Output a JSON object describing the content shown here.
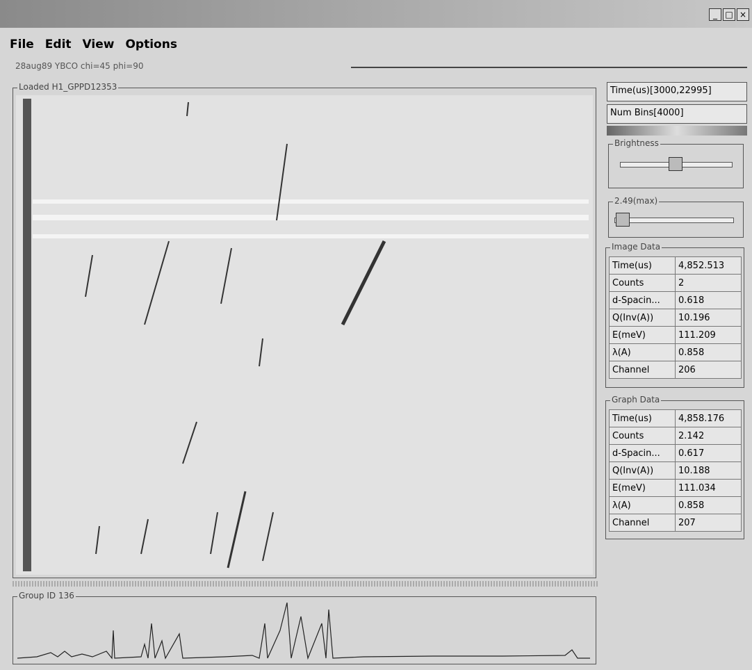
{
  "menu": [
    "File",
    "Edit",
    "View",
    "Options"
  ],
  "dataset_label": "28aug89 YBCO chi=45 phi=90",
  "image_panel": {
    "title": "Loaded H1_GPPD12353"
  },
  "controls": {
    "time_range": "Time(us)[3000,22995]",
    "num_bins": "Num Bins[4000]",
    "brightness_title": "Brightness",
    "max_title": "2.49(max)"
  },
  "image_data": {
    "title": "Image Data",
    "rows": [
      [
        "Time(us)",
        "4,852.513"
      ],
      [
        "Counts",
        "2"
      ],
      [
        "d-Spacin...",
        "0.618"
      ],
      [
        "Q(Inv(A))",
        "10.196"
      ],
      [
        "E(meV)",
        "111.209"
      ],
      [
        "λ(A)",
        "0.858"
      ],
      [
        "Channel",
        "206"
      ]
    ]
  },
  "graph_data": {
    "title": "Graph Data",
    "rows": [
      [
        "Time(us)",
        "4,858.176"
      ],
      [
        "Counts",
        "2.142"
      ],
      [
        "d-Spacin...",
        "0.617"
      ],
      [
        "Q(Inv(A))",
        "10.188"
      ],
      [
        "E(meV)",
        "111.034"
      ],
      [
        "λ(A)",
        "0.858"
      ],
      [
        "Channel",
        "207"
      ]
    ]
  },
  "graph_panel": {
    "title": "Group ID 136"
  }
}
